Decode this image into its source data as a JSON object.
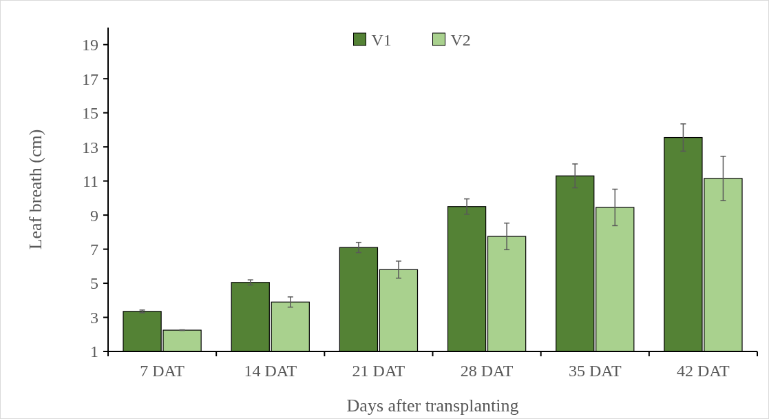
{
  "chart_data": {
    "type": "bar",
    "xlabel": "Days after transplanting",
    "ylabel": "Leaf breath (cm)",
    "categories": [
      "7 DAT",
      "14 DAT",
      "21 DAT",
      "28 DAT",
      "35 DAT",
      "42 DAT"
    ],
    "series": [
      {
        "name": "V1",
        "color": "#548235",
        "values": [
          3.35,
          5.05,
          7.1,
          9.5,
          11.3,
          13.55
        ],
        "errors": [
          0.08,
          0.15,
          0.3,
          0.45,
          0.7,
          0.8
        ]
      },
      {
        "name": "V2",
        "color": "#a9d18e",
        "values": [
          2.25,
          3.9,
          5.8,
          7.75,
          9.45,
          11.15
        ],
        "errors": [
          0.02,
          0.3,
          0.5,
          0.78,
          1.07,
          1.3
        ]
      }
    ],
    "ylim": [
      1,
      20
    ],
    "yticks": [
      1,
      3,
      5,
      7,
      9,
      11,
      13,
      15,
      17,
      19
    ],
    "grid": false,
    "legend": "top"
  }
}
